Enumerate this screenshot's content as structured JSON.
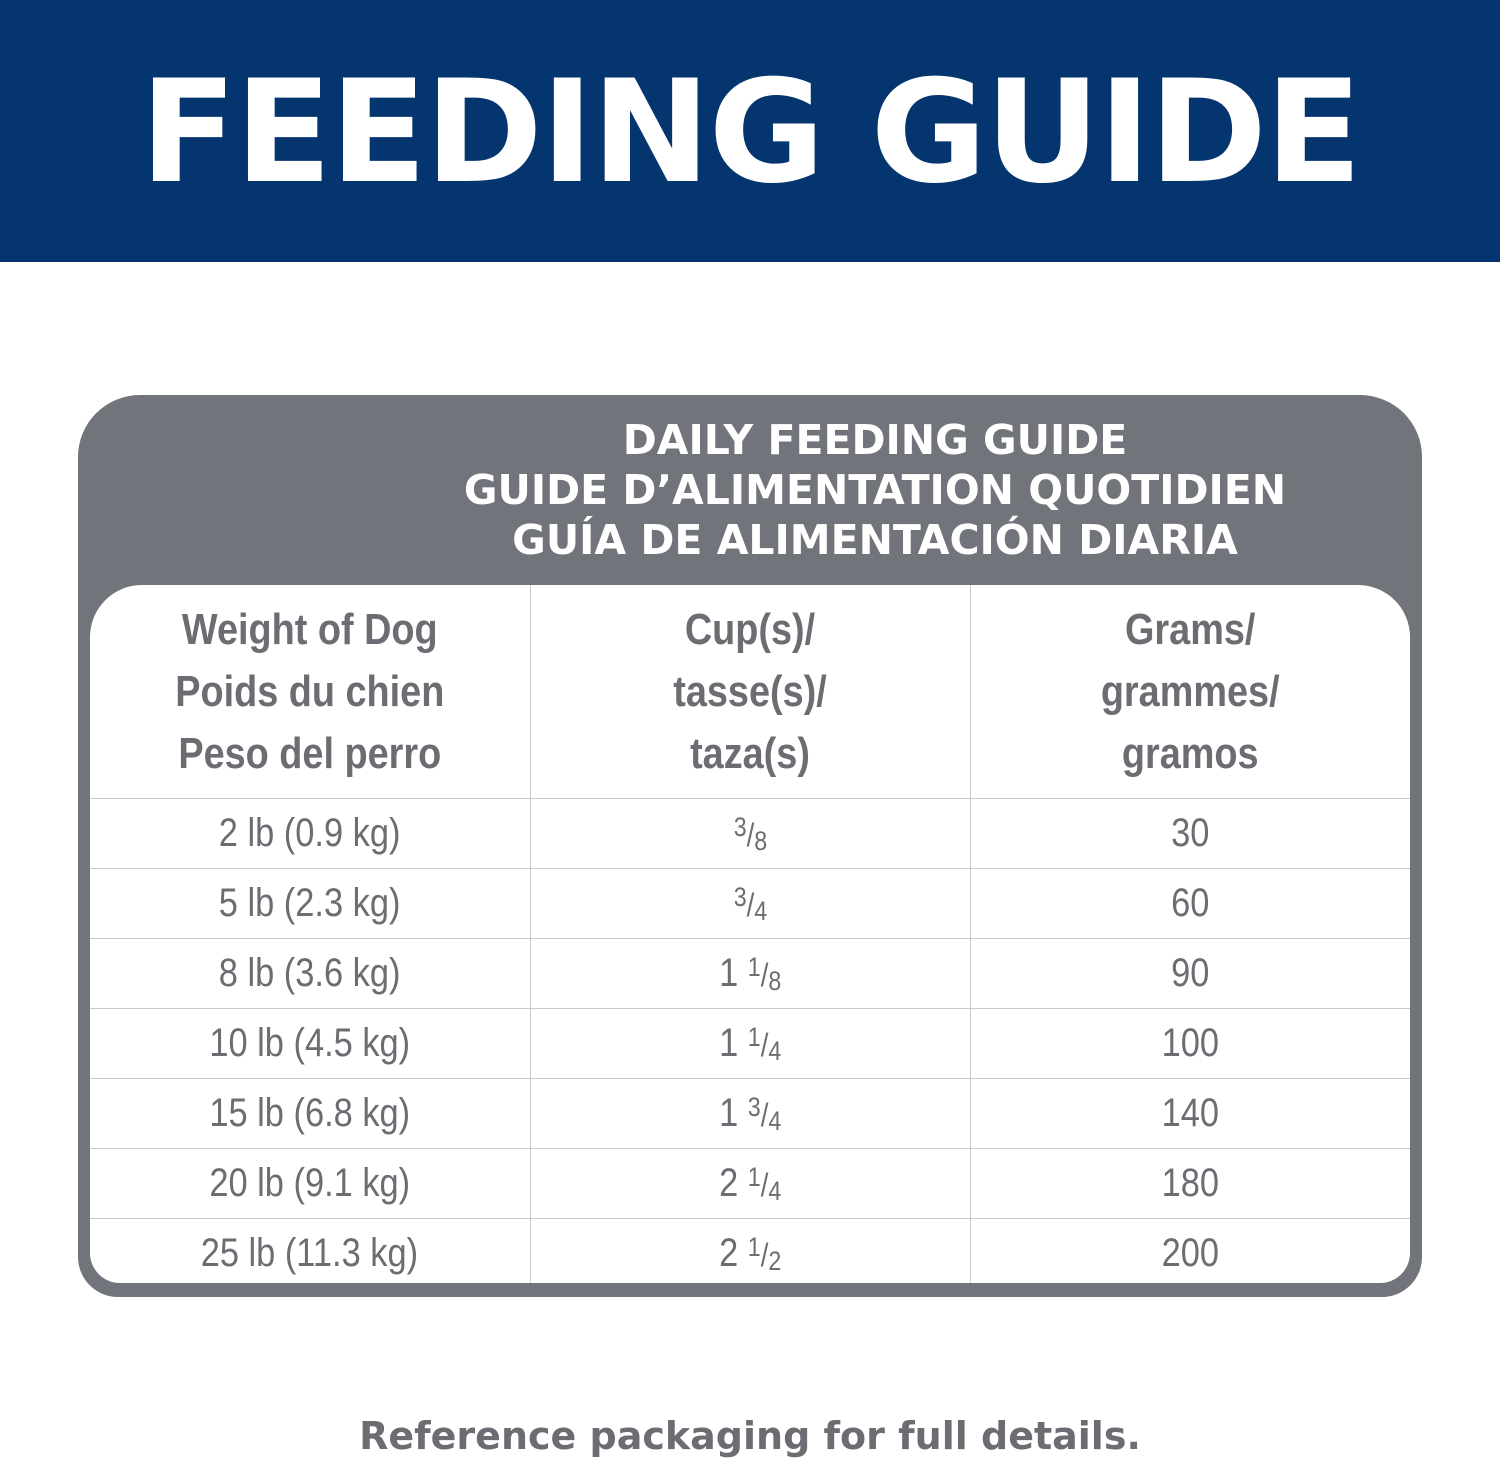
{
  "banner": {
    "title": "FEEDING GUIDE"
  },
  "panel": {
    "title_lines": [
      "DAILY FEEDING GUIDE",
      "GUIDE D’ALIMENTATION QUOTIDIEN",
      "GUÍA DE ALIMENTACIÓN DIARIA"
    ]
  },
  "table": {
    "headers": [
      [
        "Weight of Dog",
        "Poids du chien",
        "Peso del perro"
      ],
      [
        "Cup(s)/",
        "tasse(s)/",
        "taza(s)"
      ],
      [
        "Grams/",
        "grammes/",
        "gramos"
      ]
    ],
    "rows": [
      {
        "weight": "2 lb (0.9 kg)",
        "cups": {
          "whole": "",
          "num": "3",
          "den": "8"
        },
        "grams": "30"
      },
      {
        "weight": "5 lb (2.3 kg)",
        "cups": {
          "whole": "",
          "num": "3",
          "den": "4"
        },
        "grams": "60"
      },
      {
        "weight": "8 lb (3.6 kg)",
        "cups": {
          "whole": "1",
          "num": "1",
          "den": "8"
        },
        "grams": "90"
      },
      {
        "weight": "10 lb (4.5 kg)",
        "cups": {
          "whole": "1",
          "num": "1",
          "den": "4"
        },
        "grams": "100"
      },
      {
        "weight": "15 lb (6.8 kg)",
        "cups": {
          "whole": "1",
          "num": "3",
          "den": "4"
        },
        "grams": "140"
      },
      {
        "weight": "20 lb (9.1 kg)",
        "cups": {
          "whole": "2",
          "num": "1",
          "den": "4"
        },
        "grams": "180"
      },
      {
        "weight": "25 lb (11.3 kg)",
        "cups": {
          "whole": "2",
          "num": "1",
          "den": "2"
        },
        "grams": "200"
      }
    ]
  },
  "footer": {
    "text": "Reference packaging for full details."
  },
  "colors": {
    "banner": "#04356f",
    "panel": "#72747b",
    "text": "#6b6d72"
  }
}
